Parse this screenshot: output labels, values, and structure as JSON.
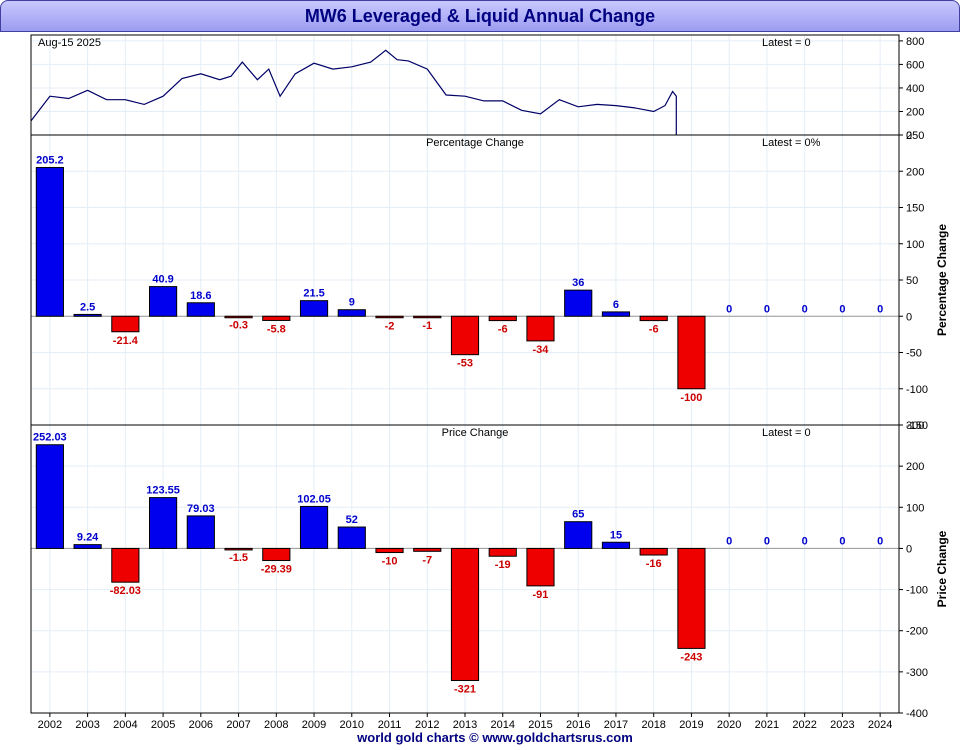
{
  "title": "MW6 Leveraged & Liquid Annual Change",
  "footer": "world gold charts © www.goldchartsrus.com",
  "colors": {
    "positive": "#0000ee",
    "negative": "#ee0000",
    "line": "#000066",
    "label_pos": "#0000cc",
    "label_neg": "#cc0000"
  },
  "chart_data": [
    {
      "type": "line",
      "date_label": "Aug-15  2025",
      "latest_label": "Latest = 0",
      "ylim": [
        0,
        850
      ],
      "yticks": [
        0,
        200,
        400,
        600,
        800
      ],
      "x": [
        2002.0,
        2002.5,
        2003.0,
        2003.5,
        2004.0,
        2004.5,
        2005.0,
        2005.5,
        2006.0,
        2006.5,
        2007.0,
        2007.3,
        2007.6,
        2008.0,
        2008.3,
        2008.6,
        2009.0,
        2009.5,
        2010.0,
        2010.5,
        2011.0,
        2011.4,
        2011.7,
        2012.0,
        2012.5,
        2013.0,
        2013.5,
        2014.0,
        2014.5,
        2015.0,
        2015.5,
        2016.0,
        2016.5,
        2017.0,
        2017.5,
        2018.0,
        2018.5,
        2018.8,
        2019.0,
        2019.1
      ],
      "values": [
        120,
        330,
        310,
        380,
        300,
        300,
        260,
        330,
        480,
        520,
        470,
        500,
        620,
        470,
        560,
        330,
        520,
        610,
        560,
        580,
        620,
        720,
        640,
        630,
        560,
        340,
        330,
        290,
        290,
        210,
        180,
        300,
        240,
        260,
        250,
        230,
        200,
        250,
        370,
        330
      ]
    },
    {
      "type": "bar",
      "subtitle": "Percentage Change",
      "latest_label": "Latest = 0%",
      "ylabel": "Percentage Change",
      "ylim": [
        -150,
        250
      ],
      "yticks": [
        -150,
        -100,
        -50,
        0,
        50,
        100,
        150,
        200,
        250
      ],
      "categories": [
        "2002",
        "2003",
        "2004",
        "2005",
        "2006",
        "2007",
        "2008",
        "2009",
        "2010",
        "2011",
        "2012",
        "2013",
        "2014",
        "2015",
        "2016",
        "2017",
        "2018",
        "2019",
        "2020",
        "2021",
        "2022",
        "2023",
        "2024"
      ],
      "values": [
        205.2,
        2.5,
        -21.4,
        40.9,
        18.6,
        -0.3,
        -5.8,
        21.5,
        9,
        -2,
        -1,
        -53,
        -6,
        -34,
        36,
        6,
        -6,
        -100,
        0,
        0,
        0,
        0,
        0
      ],
      "labels": [
        "205.2",
        "2.5",
        "-21.4",
        "40.9",
        "18.6",
        "-0.3",
        "-5.8",
        "21.5",
        "9",
        "-2",
        "-1",
        "-53",
        "-6",
        "-34",
        "36",
        "6",
        "-6",
        "-100",
        "0",
        "0",
        "0",
        "0",
        "0"
      ]
    },
    {
      "type": "bar",
      "subtitle": "Price Change",
      "latest_label": "Latest = 0",
      "ylabel": "Price Change",
      "ylim": [
        -400,
        300
      ],
      "yticks": [
        -400,
        -300,
        -200,
        -100,
        0,
        100,
        200,
        300
      ],
      "categories": [
        "2002",
        "2003",
        "2004",
        "2005",
        "2006",
        "2007",
        "2008",
        "2009",
        "2010",
        "2011",
        "2012",
        "2013",
        "2014",
        "2015",
        "2016",
        "2017",
        "2018",
        "2019",
        "2020",
        "2021",
        "2022",
        "2023",
        "2024"
      ],
      "values": [
        252.03,
        9.24,
        -82.03,
        123.55,
        79.03,
        -1.5,
        -29.39,
        102.05,
        52,
        -10,
        -7,
        -321,
        -19,
        -91,
        65,
        15,
        -16,
        -243,
        0,
        0,
        0,
        0,
        0
      ],
      "labels": [
        "252.03",
        "9.24",
        "-82.03",
        "123.55",
        "79.03",
        "-1.5",
        "-29.39",
        "102.05",
        "52",
        "-10",
        "-7",
        "-321",
        "-19",
        "-91",
        "65",
        "15",
        "-16",
        "-243",
        "0",
        "0",
        "0",
        "0",
        "0"
      ]
    }
  ]
}
